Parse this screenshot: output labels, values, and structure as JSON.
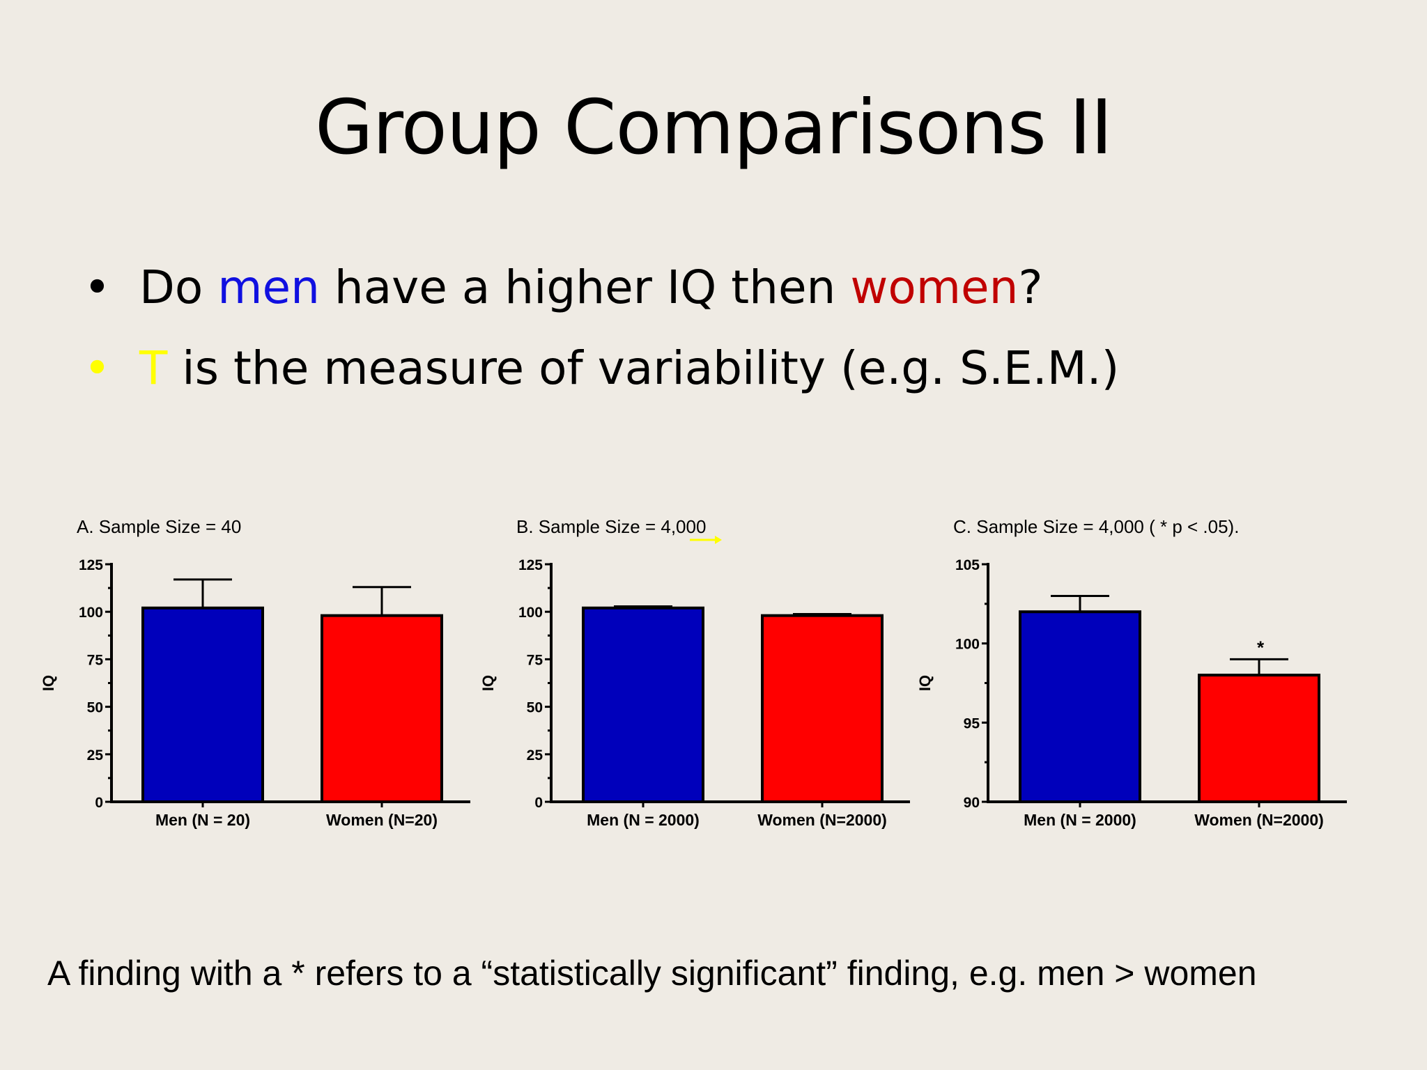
{
  "slide": {
    "title": "Group Comparisons II",
    "bullets": [
      {
        "marker": "•",
        "marker_color": "#000000",
        "parts": [
          {
            "text": "Do ",
            "color": "#000000"
          },
          {
            "text": "men",
            "color": "#1010e0"
          },
          {
            "text": " have a higher IQ then ",
            "color": "#000000"
          },
          {
            "text": "women",
            "color": "#c00000"
          },
          {
            "text": "?",
            "color": "#000000"
          }
        ]
      },
      {
        "marker": "•",
        "marker_color": "#ffff00",
        "parts": [
          {
            "text": "T",
            "color": "#ffff00"
          },
          {
            "text": " is the measure of variability (e.g. S.E.M.)",
            "color": "#000000"
          }
        ]
      }
    ],
    "footer": "A finding with a * refers to a “statistically significant” finding, e.g. men > women"
  },
  "colors": {
    "men_bar": "#0000bb",
    "women_bar": "#ff0000",
    "background": "#efebe4",
    "arrow": "#ffff00"
  },
  "chart_data": [
    {
      "type": "bar",
      "title": "A. Sample Size = 40",
      "ylabel": "IQ",
      "ylim": [
        0,
        125
      ],
      "yticks": [
        0,
        25,
        50,
        75,
        100,
        125
      ],
      "categories": [
        "Men (N = 20)",
        "Women (N=20)"
      ],
      "values": [
        102,
        98
      ],
      "errors": [
        15,
        15
      ],
      "significance": [
        "",
        ""
      ]
    },
    {
      "type": "bar",
      "title": "B. Sample Size = 4,000",
      "ylabel": "IQ",
      "ylim": [
        0,
        125
      ],
      "yticks": [
        0,
        25,
        50,
        75,
        100,
        125
      ],
      "categories": [
        "Men (N = 2000)",
        "Women (N=2000)"
      ],
      "values": [
        102,
        98
      ],
      "errors": [
        0.8,
        0.8
      ],
      "significance": [
        "",
        ""
      ],
      "annotation": "arrow pointing right under sample size"
    },
    {
      "type": "bar",
      "title": "C. Sample Size = 4,000 ( * p < .05).",
      "ylabel": "IQ",
      "ylim": [
        90,
        105
      ],
      "yticks": [
        90,
        95,
        100,
        105
      ],
      "categories": [
        "Men (N = 2000)",
        "Women (N=2000)"
      ],
      "values": [
        102,
        98
      ],
      "errors": [
        1,
        1
      ],
      "significance": [
        "",
        "*"
      ]
    }
  ]
}
